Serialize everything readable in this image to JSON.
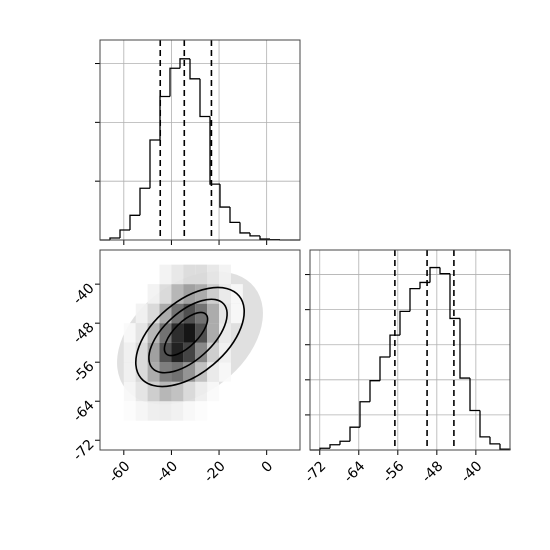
{
  "chart_data": [
    {
      "type": "histogram",
      "bins": [
        -70,
        -65.8,
        -61.6,
        -57.4,
        -53.2,
        -49,
        -44.8,
        -40.6,
        -36.4,
        -32.2,
        -28,
        -23.8,
        -19.6,
        -15.4,
        -11.2,
        -7,
        -2.8,
        1.4,
        5.6,
        9.8,
        14
      ],
      "values": [
        0,
        17,
        85,
        210,
        440,
        850,
        1220,
        1460,
        1540,
        1370,
        1050,
        475,
        280,
        150,
        60,
        35,
        8,
        3,
        0,
        0
      ],
      "quantiles": [
        -44.7,
        -34.6,
        -23.2
      ],
      "xlim": [
        -70,
        14
      ],
      "xticks": [
        -60,
        -40,
        -20,
        0
      ],
      "ylim": [
        0,
        1700
      ],
      "yticks": [
        500,
        1000,
        1500
      ],
      "grid": true,
      "color": "#000000"
    },
    {
      "type": "hist2d",
      "x_edges": [
        -60,
        -55,
        -50,
        -45,
        -40,
        -35,
        -30,
        -25,
        -20,
        -15,
        -10
      ],
      "y_edges": [
        -68,
        -64,
        -60,
        -56,
        -52,
        -48,
        -44,
        -40,
        -36
      ],
      "values": [
        [
          0.01,
          0.04,
          0.07,
          0.08,
          0.06,
          0.03,
          0.01,
          0,
          0,
          0
        ],
        [
          0.03,
          0.1,
          0.2,
          0.3,
          0.25,
          0.15,
          0.07,
          0.02,
          0,
          0
        ],
        [
          0.05,
          0.15,
          0.35,
          0.55,
          0.6,
          0.45,
          0.25,
          0.08,
          0.02,
          0
        ],
        [
          0.05,
          0.15,
          0.4,
          0.75,
          0.95,
          0.8,
          0.5,
          0.2,
          0.05,
          0
        ],
        [
          0.02,
          0.1,
          0.3,
          0.6,
          0.9,
          1.0,
          0.75,
          0.35,
          0.08,
          0
        ],
        [
          0,
          0.05,
          0.15,
          0.35,
          0.6,
          0.75,
          0.6,
          0.35,
          0.1,
          0.02
        ],
        [
          0,
          0,
          0.05,
          0.15,
          0.3,
          0.4,
          0.35,
          0.2,
          0.08,
          0.02
        ],
        [
          0,
          0,
          0,
          0.05,
          0.1,
          0.15,
          0.15,
          0.1,
          0.05,
          0
        ]
      ],
      "xlim": [
        -70,
        14
      ],
      "xticks": [
        -60,
        -40,
        -20,
        0
      ],
      "ylim": [
        -74,
        -33
      ],
      "yticks": [
        -72,
        -64,
        -56,
        -48,
        -40
      ],
      "color": "#000000"
    },
    {
      "type": "histogram",
      "bins": [
        -74,
        -71.95,
        -69.9,
        -67.85,
        -65.8,
        -63.75,
        -61.7,
        -59.65,
        -57.6,
        -55.55,
        -53.5,
        -51.45,
        -49.4,
        -47.35,
        -45.3,
        -43.25,
        -41.2,
        -39.15,
        -37.1,
        -35.05,
        -33
      ],
      "values": [
        0,
        10,
        30,
        50,
        130,
        275,
        395,
        530,
        655,
        790,
        920,
        955,
        1040,
        1005,
        750,
        410,
        225,
        75,
        35,
        5
      ],
      "quantiles": [
        -56.6,
        -50.0,
        -44.5
      ],
      "xlim": [
        -74,
        -33
      ],
      "xticks": [
        -72,
        -64,
        -56,
        -48,
        -40
      ],
      "ylim": [
        0,
        1140
      ],
      "yticks": [
        200,
        400,
        600,
        800,
        1000
      ],
      "grid": true,
      "color": "#000000"
    }
  ]
}
